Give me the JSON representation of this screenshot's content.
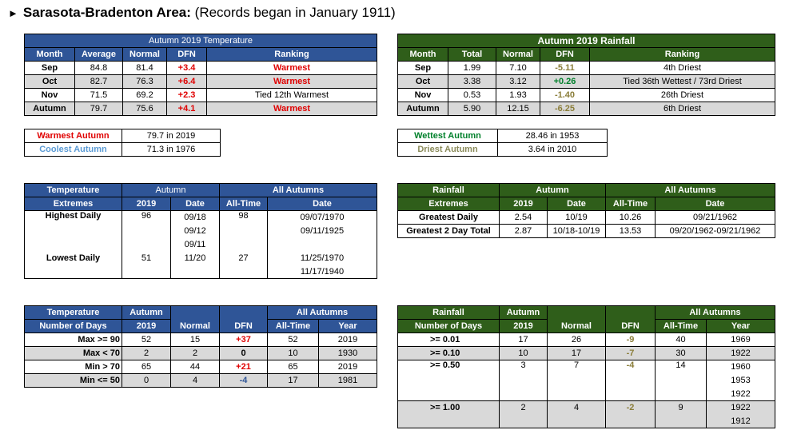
{
  "header": {
    "arrow": "►",
    "title": "Sarasota-Bradenton Area:",
    "subtitle": "(Records began in January 1911)"
  },
  "temp_monthly": {
    "title": "Autumn 2019 Temperature",
    "cols": [
      "Month",
      "Average",
      "Normal",
      "DFN",
      "Ranking"
    ],
    "rows": [
      {
        "month": "Sep",
        "avg": "84.8",
        "normal": "81.4",
        "dfn": "+3.4",
        "rank": "Warmest"
      },
      {
        "month": "Oct",
        "avg": "82.7",
        "normal": "76.3",
        "dfn": "+6.4",
        "rank": "Warmest"
      },
      {
        "month": "Nov",
        "avg": "71.5",
        "normal": "69.2",
        "dfn": "+2.3",
        "rank": "Tied 12th Warmest"
      },
      {
        "month": "Autumn",
        "avg": "79.7",
        "normal": "75.6",
        "dfn": "+4.1",
        "rank": "Warmest"
      }
    ]
  },
  "rain_monthly": {
    "title": "Autumn 2019 Rainfall",
    "cols": [
      "Month",
      "Total",
      "Normal",
      "DFN",
      "Ranking"
    ],
    "rows": [
      {
        "month": "Sep",
        "total": "1.99",
        "normal": "7.10",
        "dfn": "-5.11",
        "rank": "4th Driest"
      },
      {
        "month": "Oct",
        "total": "3.38",
        "normal": "3.12",
        "dfn": "+0.26",
        "rank": "Tied 36th Wettest / 73rd Driest"
      },
      {
        "month": "Nov",
        "total": "0.53",
        "normal": "1.93",
        "dfn": "-1.40",
        "rank": "26th Driest"
      },
      {
        "month": "Autumn",
        "total": "5.90",
        "normal": "12.15",
        "dfn": "-6.25",
        "rank": "6th Driest"
      }
    ]
  },
  "temp_records": [
    {
      "label": "Warmest Autumn",
      "value": "79.7 in 2019"
    },
    {
      "label": "Coolest Autumn",
      "value": "71.3 in 1976"
    }
  ],
  "rain_records": [
    {
      "label": "Wettest Autumn",
      "value": "28.46 in 1953"
    },
    {
      "label": "Driest Autumn",
      "value": "3.64 in 2010"
    }
  ],
  "temp_extremes": {
    "h1": "Temperature",
    "h2": "Extremes",
    "autumn": "Autumn",
    "all_autumns": "All Autumns",
    "c2019": "2019",
    "date": "Date",
    "alltime": "All-Time",
    "date2": "Date",
    "highest": {
      "label": "Highest Daily",
      "v2019": "96",
      "dates": [
        "09/18",
        "09/12",
        "09/11"
      ],
      "alltime": "98",
      "atdates": [
        "09/07/1970",
        "09/11/1925"
      ]
    },
    "lowest": {
      "label": "Lowest Daily",
      "v2019": "51",
      "dates": [
        "11/20"
      ],
      "alltime": "27",
      "atdates": [
        "11/25/1970",
        "11/17/1940"
      ]
    }
  },
  "rain_extremes": {
    "h1": "Rainfall",
    "h2": "Extremes",
    "autumn": "Autumn",
    "all_autumns": "All Autumns",
    "c2019": "2019",
    "date": "Date",
    "alltime": "All-Time",
    "date2": "Date",
    "rows": [
      {
        "label": "Greatest Daily",
        "v2019": "2.54",
        "date": "10/19",
        "alltime": "10.26",
        "atdate": "09/21/1962"
      },
      {
        "label": "Greatest 2 Day Total",
        "v2019": "2.87",
        "date": "10/18-10/19",
        "alltime": "13.53",
        "atdate": "09/20/1962-09/21/1962"
      }
    ]
  },
  "temp_days": {
    "h1": "Temperature",
    "h2": "Number of Days",
    "autumn": "Autumn",
    "c2019": "2019",
    "normal": "Normal",
    "dfn": "DFN",
    "all_autumns": "All Autumns",
    "alltime": "All-Time",
    "year": "Year",
    "rows": [
      {
        "label": "Max >= 90",
        "v": "52",
        "normal": "15",
        "dfn": "+37",
        "alltime": "52",
        "year": "2019"
      },
      {
        "label": "Max < 70",
        "v": "2",
        "normal": "2",
        "dfn": "0",
        "alltime": "10",
        "year": "1930"
      },
      {
        "label": "Min > 70",
        "v": "65",
        "normal": "44",
        "dfn": "+21",
        "alltime": "65",
        "year": "2019"
      },
      {
        "label": "Min <= 50",
        "v": "0",
        "normal": "4",
        "dfn": "-4",
        "alltime": "17",
        "year": "1981"
      }
    ]
  },
  "rain_days": {
    "h1": "Rainfall",
    "h2": "Number of Days",
    "autumn": "Autumn",
    "c2019": "2019",
    "normal": "Normal",
    "dfn": "DFN",
    "all_autumns": "All Autumns",
    "alltime": "All-Time",
    "year": "Year",
    "rows": [
      {
        "label": ">= 0.01",
        "v": "17",
        "normal": "26",
        "dfn": "-9",
        "alltime": "40",
        "years": [
          "1969"
        ]
      },
      {
        "label": ">= 0.10",
        "v": "10",
        "normal": "17",
        "dfn": "-7",
        "alltime": "30",
        "years": [
          "1922"
        ]
      },
      {
        "label": ">= 0.50",
        "v": "3",
        "normal": "7",
        "dfn": "-4",
        "alltime": "14",
        "years": [
          "1960",
          "1953",
          "1922"
        ]
      },
      {
        "label": ">= 1.00",
        "v": "2",
        "normal": "4",
        "dfn": "-2",
        "alltime": "9",
        "years": [
          "1922",
          "1912"
        ]
      }
    ]
  },
  "colors": {
    "blue_header": "#2f5597",
    "green_header": "#2f5e1a",
    "warm_red": "#e00000",
    "dfn_olive": "#8b7e3a",
    "gray_row": "#d9d9d9"
  }
}
